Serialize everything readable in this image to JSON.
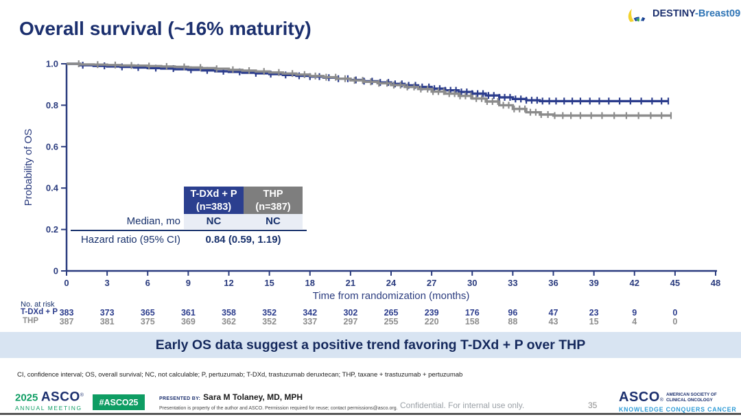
{
  "logo": {
    "part1": "DESTINY",
    "part2": "-Breast09"
  },
  "title": "Overall survival (~16% maturity)",
  "chart_data": {
    "type": "line",
    "subtype": "kaplan-meier",
    "xlabel": "Time from randomization (months)",
    "ylabel": "Probability of OS",
    "xlim": [
      0,
      48
    ],
    "ylim": [
      0,
      1.0
    ],
    "x_ticks": [
      0,
      3,
      6,
      9,
      12,
      15,
      18,
      21,
      24,
      27,
      30,
      33,
      36,
      39,
      42,
      45,
      48
    ],
    "y_ticks": [
      {
        "v": 1.0,
        "label": "1.0"
      },
      {
        "v": 0.8,
        "label": "0.8"
      },
      {
        "v": 0.6,
        "label": "0.6"
      },
      {
        "v": 0.4,
        "label": "0.4"
      },
      {
        "v": 0.2,
        "label": "0.2"
      },
      {
        "v": 0.0,
        "label": "0"
      }
    ],
    "series": [
      {
        "name": "T-DXd + P",
        "color": "#2B3C8C",
        "points": [
          [
            0,
            1.0
          ],
          [
            1,
            0.993
          ],
          [
            2,
            0.99
          ],
          [
            3,
            0.987
          ],
          [
            4,
            0.985
          ],
          [
            5,
            0.982
          ],
          [
            6,
            0.979
          ],
          [
            7,
            0.977
          ],
          [
            8,
            0.974
          ],
          [
            9,
            0.971
          ],
          [
            10,
            0.968
          ],
          [
            11,
            0.964
          ],
          [
            12,
            0.961
          ],
          [
            13,
            0.957
          ],
          [
            14,
            0.954
          ],
          [
            15,
            0.95
          ],
          [
            16,
            0.946
          ],
          [
            17,
            0.942
          ],
          [
            18,
            0.938
          ],
          [
            19,
            0.933
          ],
          [
            20,
            0.928
          ],
          [
            21,
            0.922
          ],
          [
            22,
            0.916
          ],
          [
            23,
            0.91
          ],
          [
            24,
            0.903
          ],
          [
            25,
            0.896
          ],
          [
            26,
            0.888
          ],
          [
            27,
            0.88
          ],
          [
            28,
            0.872
          ],
          [
            29,
            0.864
          ],
          [
            30,
            0.856
          ],
          [
            31,
            0.847
          ],
          [
            32,
            0.838
          ],
          [
            33,
            0.83
          ],
          [
            34,
            0.824
          ],
          [
            35,
            0.82
          ],
          [
            44.5,
            0.82
          ]
        ],
        "censors": [
          1.2,
          2.8,
          4.1,
          5.3,
          6.6,
          7.9,
          9.2,
          10.4,
          11.6,
          12.8,
          14.0,
          15.1,
          16.2,
          17.2,
          18.0,
          18.7,
          19.4,
          20.1,
          20.8,
          21.4,
          22.0,
          22.6,
          23.2,
          23.8,
          24.3,
          24.8,
          25.3,
          25.8,
          26.3,
          26.8,
          27.2,
          27.6,
          28.0,
          28.4,
          28.8,
          29.2,
          29.6,
          30.0,
          30.4,
          30.8,
          31.2,
          31.6,
          32.0,
          32.4,
          32.8,
          33.2,
          33.6,
          34.0,
          34.4,
          34.8,
          35.2,
          35.7,
          36.2,
          36.8,
          37.4,
          38.0,
          38.7,
          39.4,
          40.1,
          40.9,
          41.7,
          42.5,
          43.3,
          44.0,
          44.5
        ]
      },
      {
        "name": "THP",
        "color": "#8C8C8C",
        "points": [
          [
            0,
            1.0
          ],
          [
            1,
            0.997
          ],
          [
            2,
            0.996
          ],
          [
            3,
            0.994
          ],
          [
            4,
            0.992
          ],
          [
            5,
            0.991
          ],
          [
            6,
            0.989
          ],
          [
            7,
            0.987
          ],
          [
            8,
            0.985
          ],
          [
            9,
            0.982
          ],
          [
            10,
            0.979
          ],
          [
            11,
            0.976
          ],
          [
            12,
            0.971
          ],
          [
            13,
            0.967
          ],
          [
            14,
            0.963
          ],
          [
            15,
            0.958
          ],
          [
            16,
            0.953
          ],
          [
            17,
            0.948
          ],
          [
            18,
            0.941
          ],
          [
            19,
            0.935
          ],
          [
            20,
            0.928
          ],
          [
            21,
            0.92
          ],
          [
            22,
            0.913
          ],
          [
            23,
            0.906
          ],
          [
            24,
            0.897
          ],
          [
            25,
            0.888
          ],
          [
            26,
            0.878
          ],
          [
            27,
            0.866
          ],
          [
            28,
            0.856
          ],
          [
            29,
            0.845
          ],
          [
            30,
            0.832
          ],
          [
            31,
            0.818
          ],
          [
            32,
            0.8
          ],
          [
            33,
            0.782
          ],
          [
            34,
            0.766
          ],
          [
            35,
            0.755
          ],
          [
            36,
            0.75
          ],
          [
            44.7,
            0.75
          ]
        ],
        "censors": [
          0.9,
          2.3,
          3.6,
          4.8,
          6.1,
          7.4,
          8.7,
          9.9,
          11.1,
          12.3,
          13.5,
          14.6,
          15.7,
          16.7,
          17.6,
          18.4,
          19.2,
          19.9,
          20.6,
          21.3,
          21.9,
          22.5,
          23.1,
          23.7,
          24.2,
          24.7,
          25.2,
          25.7,
          26.2,
          26.7,
          27.1,
          27.5,
          27.9,
          28.3,
          28.7,
          29.1,
          29.5,
          29.9,
          30.3,
          30.7,
          31.1,
          31.5,
          31.9,
          32.3,
          32.7,
          33.1,
          33.5,
          33.9,
          34.3,
          34.7,
          35.1,
          35.6,
          36.1,
          36.7,
          37.3,
          38.0,
          38.8,
          39.6,
          40.5,
          41.4,
          42.3,
          43.2,
          44.0,
          44.7
        ]
      }
    ]
  },
  "inset_table": {
    "col_headers": [
      {
        "label": "T-DXd + P",
        "sub": "(n=383)"
      },
      {
        "label": "THP",
        "sub": "(n=387)"
      }
    ],
    "median_row": {
      "label": "Median, mo",
      "values": [
        "NC",
        "NC"
      ]
    },
    "hazard_row": {
      "label": "Hazard ratio (95% CI)",
      "value": "0.84 (0.59, 1.19)"
    }
  },
  "at_risk": {
    "label": "No. at risk",
    "months": [
      0,
      3,
      6,
      9,
      12,
      15,
      18,
      21,
      24,
      27,
      30,
      33,
      36,
      39,
      42,
      45
    ],
    "rows": [
      {
        "name": "T-DXd + P",
        "color": "#2B3C8C",
        "values": [
          383,
          373,
          365,
          361,
          358,
          352,
          342,
          302,
          265,
          239,
          176,
          96,
          47,
          23,
          9,
          0
        ]
      },
      {
        "name": "THP",
        "color": "#8C8C8C",
        "values": [
          387,
          381,
          375,
          369,
          362,
          352,
          337,
          297,
          255,
          220,
          158,
          88,
          43,
          15,
          4,
          0
        ]
      }
    ]
  },
  "banner": "Early OS data suggest a positive trend favoring T-DXd + P over THP",
  "footnote": "CI, confidence interval; OS, overall survival; NC, not calculable; P, pertuzumab; T-DXd, trastuzumab deruxtecan; THP, taxane + trastuzumab + pertuzumab",
  "footer": {
    "year": "2025",
    "asco": "ASCO",
    "reg": "®",
    "annual_meeting": "ANNUAL MEETING",
    "hashtag": "#ASCO25",
    "presented_by_label": "PRESENTED BY:",
    "presenter": "Sara M Tolaney, MD, MPH",
    "permission": "Presentation is property of the author and ASCO. Permission required for reuse; contact permissions@asco.org.",
    "confidential": "Confidential. For internal use only.",
    "page": "35",
    "society_line1": "AMERICAN SOCIETY OF",
    "society_line2": "CLINICAL ONCOLOGY",
    "tagline": "KNOWLEDGE CONQUERS CANCER"
  }
}
